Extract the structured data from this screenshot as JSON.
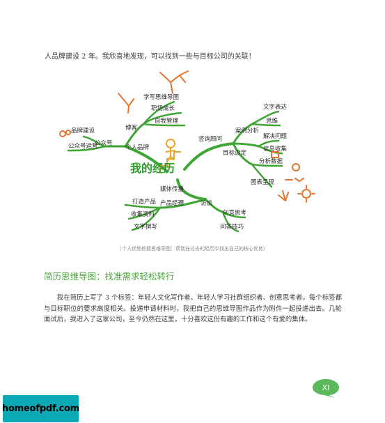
{
  "intro_text": "人品牌建设 2 年。我欣喜地发现，可以找到一些与目标公司的关联！",
  "mindmap": {
    "center": "我的经历",
    "personal_brand": "个人品牌",
    "wechat": "公众号",
    "brand_building": "品牌建设",
    "public_account": "公众号运营",
    "blog": "博客",
    "blog_items": [
      "学写思维导图",
      "职场成长",
      "自我管理"
    ],
    "consulting": "咨询顾问",
    "consult_items": [
      "文字表达",
      "思维",
      "案例分析",
      "解决问题",
      "目标设定",
      "信息收集",
      "分析数据",
      "图表呈现"
    ],
    "media": "媒体传播",
    "media_left": "产品经理",
    "media_left_items": [
      "打造产品",
      "收集资料",
      "文字撰写"
    ],
    "media_center": "访谈",
    "media_right_items": [
      "创意思考",
      "问答技巧"
    ]
  },
  "caption": "（个人优势挖掘思维导图：帮我在过去的经历中找出自己的核心优势）",
  "section_heading": "简历思维导图：找准需求轻松转行",
  "body_text": "我在简历上写了 3 个标签：年轻人文化写作者、年轻人学习社群组织者、创意思考者。每个标签都与目标职位的要求高度相关。投递申请材料时，我把自己的思维导图作品作为附件一起投递出去。几轮面试后，我进入了这家公司，至今仍然在这里，十分喜欢这份有趣的工作和这个有爱的集体。",
  "page_number": "XI",
  "watermark": "homeofpdf.com",
  "colors": {
    "branch_green": "#3fa535",
    "accent_orange": "#e8732c",
    "center_green": "#2e9a2a",
    "heading_green": "#4aa33a",
    "badge_green": "#5cb85c",
    "watermark_teal": "#0aa9b5"
  }
}
